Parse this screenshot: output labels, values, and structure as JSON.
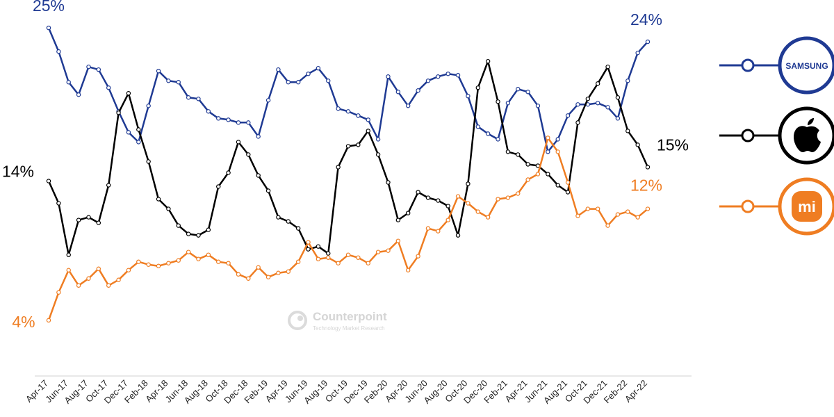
{
  "chart_data": {
    "type": "line",
    "categories": [
      "Apr-17",
      null,
      "Jun-17",
      null,
      "Aug-17",
      null,
      "Oct-17",
      null,
      "Dec-17",
      null,
      "Feb-18",
      null,
      "Apr-18",
      null,
      "Jun-18",
      null,
      "Aug-18",
      null,
      "Oct-18",
      null,
      "Dec-18",
      null,
      "Feb-19",
      null,
      "Apr-19",
      null,
      "Jun-19",
      null,
      "Aug-19",
      null,
      "Oct-19",
      null,
      "Dec-19",
      null,
      "Feb-20",
      null,
      "Apr-20",
      null,
      "Jun-20",
      null,
      "Aug-20",
      null,
      "Oct-20",
      null,
      "Dec-20",
      null,
      "Feb-21",
      null,
      "Apr-21",
      null,
      "Jun-21",
      null,
      "Aug-21",
      null,
      "Oct-21",
      null,
      "Dec-21",
      null,
      "Feb-22",
      null,
      "Apr-22"
    ],
    "ylim": [
      0,
      27
    ],
    "series": [
      {
        "name": "SAMSUNG",
        "color": "#1f3a93",
        "values": [
          25,
          23.3,
          21.1,
          20.2,
          22.2,
          22.0,
          20.7,
          19.0,
          17.5,
          16.8,
          19.4,
          21.9,
          21.2,
          21.1,
          20.0,
          19.9,
          19.0,
          18.5,
          18.4,
          18.2,
          18.2,
          17.2,
          19.8,
          22.0,
          21.1,
          21.1,
          21.7,
          22.1,
          21.2,
          19.2,
          19.0,
          18.7,
          18.4,
          17.0,
          21.5,
          20.4,
          19.4,
          20.5,
          21.2,
          21.5,
          21.7,
          21.6,
          20.1,
          17.9,
          17.4,
          17.0,
          19.6,
          20.6,
          20.4,
          19.4,
          16.1,
          17.0,
          18.7,
          19.5,
          19.5,
          19.6,
          19.3,
          18.5,
          21.2,
          23.2,
          24
        ],
        "value_labels": [
          "25%",
          null,
          null,
          null,
          null,
          null,
          null,
          null,
          null,
          null,
          null,
          null,
          null,
          null,
          null,
          null,
          null,
          null,
          null,
          null,
          null,
          null,
          null,
          null,
          null,
          null,
          null,
          null,
          null,
          null,
          null,
          null,
          null,
          null,
          null,
          null,
          null,
          null,
          null,
          null,
          null,
          null,
          null,
          null,
          null,
          null,
          null,
          null,
          null,
          null,
          null,
          null,
          null,
          null,
          null,
          null,
          null,
          null,
          null,
          null,
          "24%"
        ]
      },
      {
        "color": "#000000",
        "values": [
          14,
          12.4,
          8.7,
          11.2,
          11.4,
          11.0,
          13.7,
          18.9,
          20.3,
          17.7,
          15.4,
          12.7,
          12.0,
          10.8,
          10.2,
          10.1,
          10.5,
          13.6,
          14.6,
          16.8,
          15.9,
          14.4,
          13.3,
          11.4,
          11.1,
          10.6,
          9.1,
          9.3,
          8.8,
          15.0,
          16.5,
          16.6,
          17.6,
          15.9,
          13.9,
          11.2,
          11.7,
          13.2,
          12.8,
          12.6,
          12.2,
          10.1,
          13.8,
          20.7,
          22.6,
          19.7,
          16.1,
          15.9,
          15.2,
          15.1,
          14.5,
          13.7,
          13.2,
          18.2,
          19.9,
          21.0,
          22.2,
          20.0,
          17.6,
          16.6,
          15
        ],
        "value_labels": [
          "14%",
          null,
          null,
          null,
          null,
          null,
          null,
          null,
          null,
          null,
          null,
          null,
          null,
          null,
          null,
          null,
          null,
          null,
          null,
          null,
          null,
          null,
          null,
          null,
          null,
          null,
          null,
          null,
          null,
          null,
          null,
          null,
          null,
          null,
          null,
          null,
          null,
          null,
          null,
          null,
          null,
          null,
          null,
          null,
          null,
          null,
          null,
          null,
          null,
          null,
          null,
          null,
          null,
          null,
          null,
          null,
          null,
          null,
          null,
          null,
          "15%"
        ]
      },
      {
        "name": "mi",
        "color": "#ef7d22",
        "values": [
          4,
          6.0,
          7.6,
          6.5,
          7.0,
          7.7,
          6.5,
          6.9,
          7.6,
          8.2,
          8.0,
          7.9,
          8.1,
          8.3,
          8.9,
          8.4,
          8.7,
          8.2,
          8.1,
          7.3,
          7.0,
          7.8,
          7.1,
          7.4,
          7.5,
          8.2,
          9.6,
          8.4,
          8.5,
          8.1,
          8.7,
          8.5,
          8.1,
          8.9,
          9.0,
          9.7,
          7.6,
          8.6,
          10.6,
          10.4,
          11.2,
          12.9,
          12.4,
          11.8,
          11.4,
          12.7,
          12.8,
          13.1,
          14.1,
          14.5,
          17.1,
          16.1,
          13.9,
          11.5,
          12.0,
          12.0,
          10.8,
          11.6,
          11.8,
          11.4,
          12
        ],
        "value_labels": [
          "4%",
          null,
          null,
          null,
          null,
          null,
          null,
          null,
          null,
          null,
          null,
          null,
          null,
          null,
          null,
          null,
          null,
          null,
          null,
          null,
          null,
          null,
          null,
          null,
          null,
          null,
          null,
          null,
          null,
          null,
          null,
          null,
          null,
          null,
          null,
          null,
          null,
          null,
          null,
          null,
          null,
          null,
          null,
          null,
          null,
          null,
          null,
          null,
          null,
          null,
          null,
          null,
          null,
          null,
          null,
          null,
          null,
          null,
          null,
          null,
          "12%"
        ]
      }
    ],
    "watermark": {
      "title": "Counterpoint",
      "subtitle": "Technology Market Research"
    }
  }
}
